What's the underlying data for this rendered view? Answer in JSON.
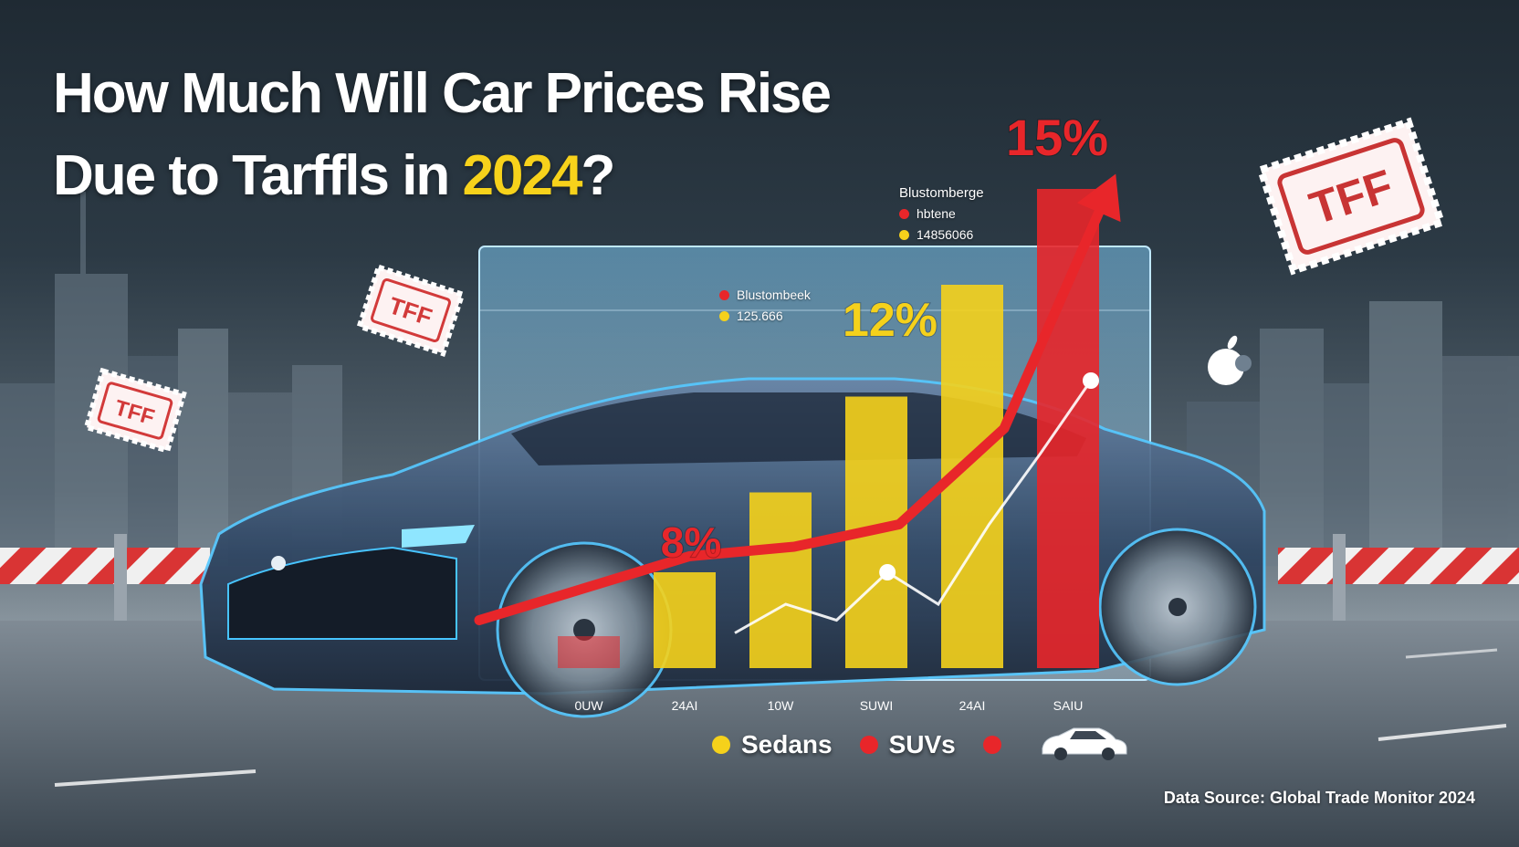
{
  "title": {
    "line1": "How Much Will Car Prices Rise",
    "line2_prefix": "Due to Tarffls in ",
    "line2_highlight": "2024",
    "line2_suffix": "?"
  },
  "stamps": [
    {
      "text": "TFF"
    },
    {
      "text": "TFF"
    },
    {
      "text": "TFF"
    }
  ],
  "mini_legend_top": {
    "title": "Blustomberge",
    "items": [
      {
        "label": "hbtene",
        "color": "#e8262a"
      },
      {
        "label": "14856066",
        "color": "#f5d11b"
      }
    ]
  },
  "mini_legend_panel": {
    "items": [
      {
        "label": "Blustombeek",
        "color": "#e8262a"
      },
      {
        "label": "125.666",
        "color": "#f5d11b"
      }
    ]
  },
  "chart_data": {
    "type": "bar",
    "categories": [
      "0UW",
      "24AI",
      "10W",
      "SUWI",
      "24AI",
      "SAIU"
    ],
    "series": [
      {
        "name": "Sedans",
        "color": "#f5d11b",
        "values": [
          null,
          3,
          5.5,
          8.5,
          12,
          null
        ]
      },
      {
        "name": "SUVs",
        "color": "#e8262a",
        "values": [
          1,
          null,
          null,
          null,
          null,
          15
        ]
      }
    ],
    "trend_line": {
      "values": [
        1.5,
        2.5,
        3.5,
        3.8,
        4.5,
        7.5,
        15
      ],
      "color": "#e8262a"
    },
    "secondary_line": {
      "values": [
        1.1,
        2,
        1.5,
        3,
        2,
        4.5,
        6.7,
        9
      ],
      "color": "#ffffff"
    },
    "annotations": [
      {
        "text": "8%",
        "value": 8,
        "color": "#e8262a"
      },
      {
        "text": "12%",
        "value": 12,
        "color": "#f5d11b"
      },
      {
        "text": "15%",
        "value": 15,
        "color": "#e8262a"
      }
    ],
    "ylim": [
      0,
      16
    ],
    "grid": false,
    "legend_position": "bottom"
  },
  "legend": [
    {
      "label": "Sedans",
      "color": "#f5d11b"
    },
    {
      "label": "SUVs",
      "color": "#e8262a"
    },
    {
      "label": "",
      "color": "#e8262a"
    }
  ],
  "source": "Data Source: Global Trade Monitor 2024"
}
